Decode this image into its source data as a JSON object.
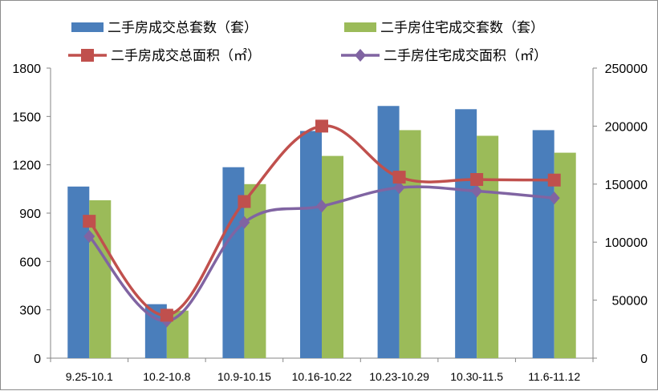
{
  "chart_data": {
    "type": "bar",
    "categories": [
      "9.25-10.1",
      "10.2-10.8",
      "10.9-10.15",
      "10.16-10.22",
      "10.23-10.29",
      "10.30-11.5",
      "11.6-11.12"
    ],
    "bar_series": [
      {
        "name": "二手房成交总套数（套）",
        "color": "#4a7ebb",
        "values": [
          1065,
          335,
          1185,
          1410,
          1565,
          1545,
          1415
        ]
      },
      {
        "name": "二手房住宅成交套数（套）",
        "color": "#9bbb59",
        "values": [
          980,
          295,
          1080,
          1255,
          1415,
          1380,
          1275
        ]
      }
    ],
    "line_series": [
      {
        "name": "二手房成交总面积（㎡）",
        "color": "#c0504d",
        "marker": "square",
        "axis": "right",
        "values": [
          118000,
          37000,
          135000,
          200000,
          156000,
          154000,
          153500
        ]
      },
      {
        "name": "二手房住宅成交面积（㎡）",
        "color": "#8064a2",
        "marker": "diamond",
        "axis": "right",
        "values": [
          105000,
          32000,
          117000,
          131000,
          147000,
          144000,
          138000
        ]
      }
    ],
    "y_left": {
      "min": 0,
      "max": 1800,
      "ticks": [
        "0",
        "300",
        "600",
        "900",
        "1200",
        "1500",
        "1800"
      ]
    },
    "y_right": {
      "min": 0,
      "max": 250000,
      "ticks": [
        "0",
        "50000",
        "100000",
        "150000",
        "200000",
        "250000"
      ]
    },
    "grid": false,
    "legend_position": "top"
  }
}
